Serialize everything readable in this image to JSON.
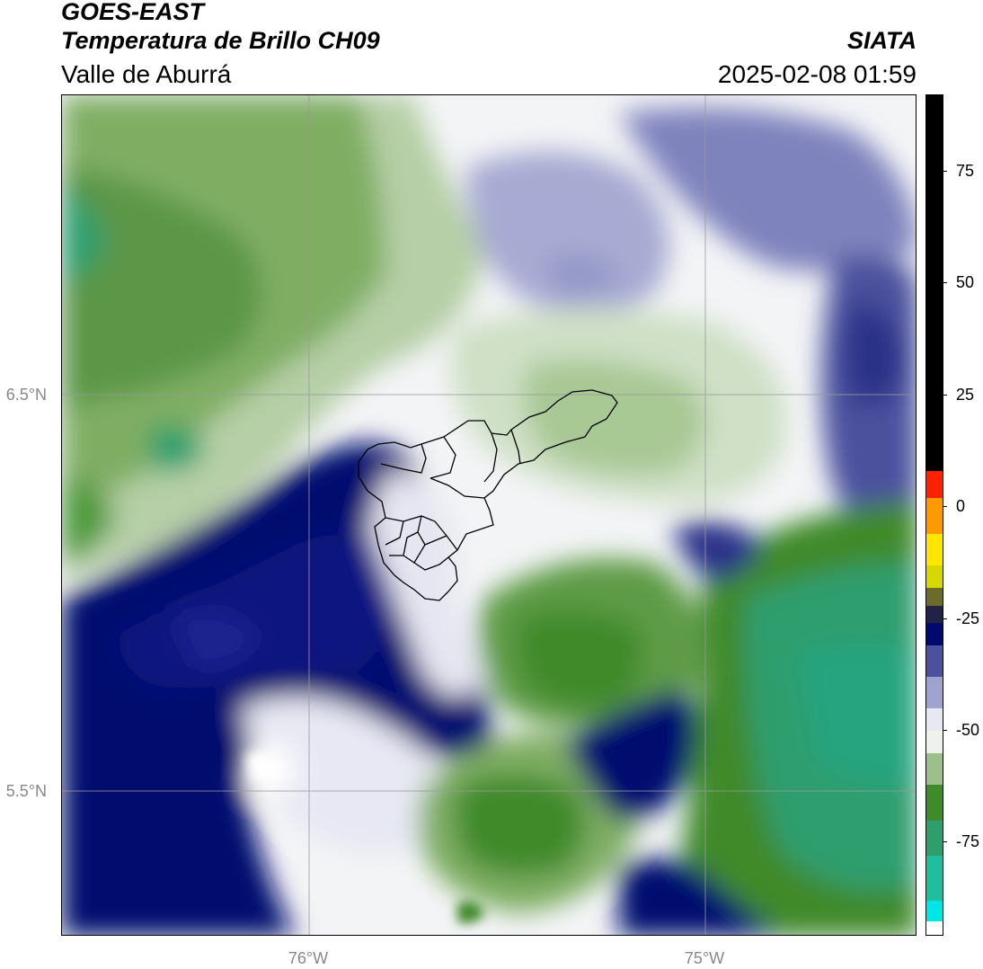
{
  "header": {
    "satellite": "GOES-EAST",
    "product": "Temperatura de Brillo CH09",
    "organization": "SIATA",
    "region": "Valle de Aburrá",
    "timestamp": "2025-02-08 01:59"
  },
  "axes": {
    "lat_labels": [
      {
        "value": 6.5,
        "text": "6.5°N"
      },
      {
        "value": 5.5,
        "text": "5.5°N"
      }
    ],
    "lon_labels": [
      {
        "value": -76.0,
        "text": "76°W"
      },
      {
        "value": -75.0,
        "text": "75°W"
      }
    ],
    "extent": {
      "lon_min": -76.625,
      "lon_max": -74.47,
      "lat_min": 5.135,
      "lat_max": 7.25
    },
    "gridlines": true
  },
  "colorbar": {
    "ticks": [
      {
        "value": 75,
        "text": "75"
      },
      {
        "value": 50,
        "text": "50"
      },
      {
        "value": 25,
        "text": "25"
      },
      {
        "value": 0,
        "text": "0"
      },
      {
        "value": -25,
        "text": "-25"
      },
      {
        "value": -50,
        "text": "-50"
      },
      {
        "value": -75,
        "text": "-75"
      }
    ],
    "range": [
      -96,
      92
    ],
    "segments": [
      {
        "from": -96,
        "to": -92.5,
        "color": "#ffffff"
      },
      {
        "from": -92.5,
        "to": -88,
        "color": "#00e5e5"
      },
      {
        "from": -88,
        "to": -78,
        "color": "#1fbf9a"
      },
      {
        "from": -78,
        "to": -70,
        "color": "#2e9e6e"
      },
      {
        "from": -70,
        "to": -62,
        "color": "#3f8a2a"
      },
      {
        "from": -62,
        "to": -55,
        "color": "#9cbf8c"
      },
      {
        "from": -55,
        "to": -50,
        "color": "#eef2ec"
      },
      {
        "from": -50,
        "to": -45,
        "color": "#e8e8f2"
      },
      {
        "from": -45,
        "to": -38,
        "color": "#a0a3cf"
      },
      {
        "from": -38,
        "to": -31,
        "color": "#4b519d"
      },
      {
        "from": -31,
        "to": -26,
        "color": "#000a6e"
      },
      {
        "from": -26,
        "to": -22,
        "color": "#222244"
      },
      {
        "from": -22,
        "to": -18,
        "color": "#6b6b2b"
      },
      {
        "from": -18,
        "to": -13,
        "color": "#d8d800"
      },
      {
        "from": -13,
        "to": -6,
        "color": "#ffe600"
      },
      {
        "from": -6,
        "to": 2,
        "color": "#ff9900"
      },
      {
        "from": 2,
        "to": 8,
        "color": "#ff2200"
      },
      {
        "from": 8,
        "to": 92,
        "color": "#000000"
      }
    ]
  }
}
